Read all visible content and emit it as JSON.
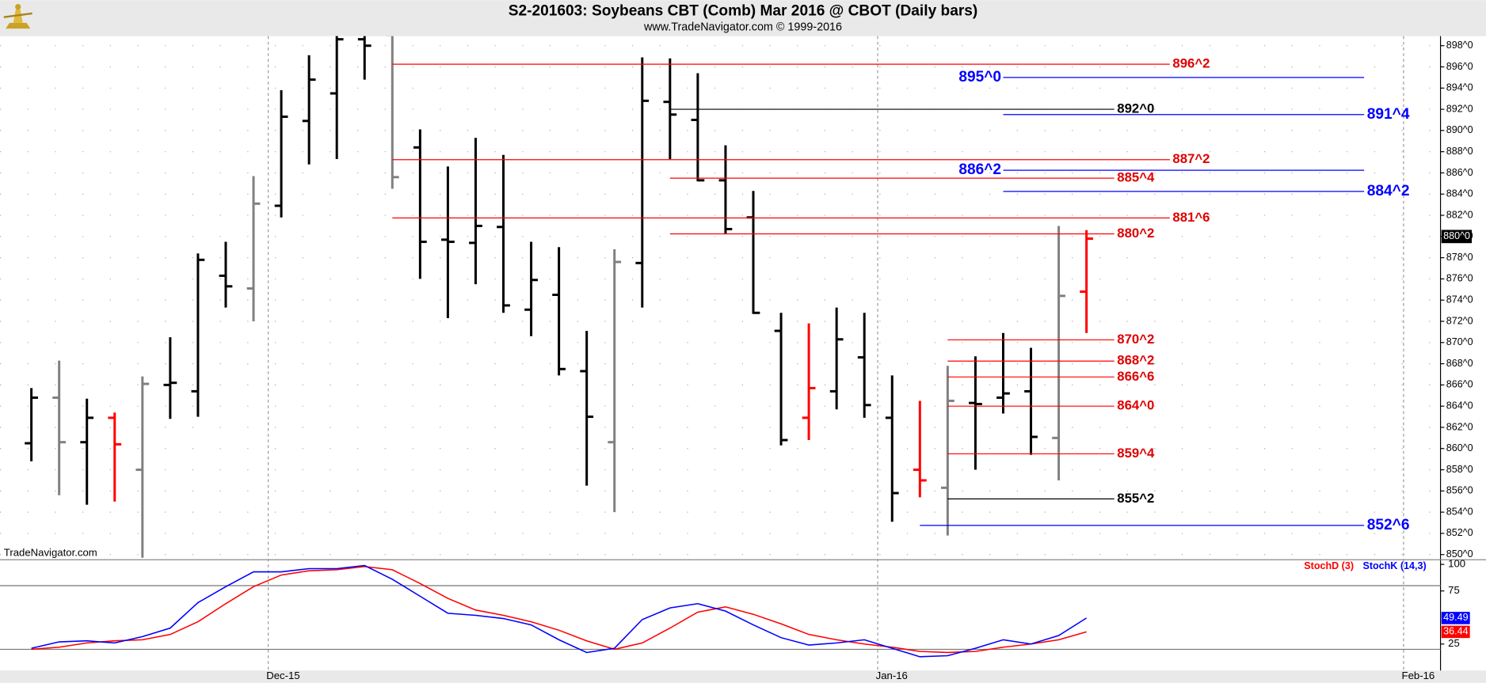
{
  "chart_data": [
    {
      "type": "ohlc",
      "title": "S2-201603:  Soybeans CBT (Comb) Mar 2016 @ CBOT  (Daily bars)",
      "subtitle": "www.TradeNavigator.com © 1999-2016",
      "watermark": "TradeNavigator.com",
      "x": [
        0,
        1,
        2,
        3,
        4,
        5,
        6,
        7,
        8,
        9,
        10,
        11,
        12,
        13,
        14,
        15,
        16,
        17,
        18,
        19,
        20,
        21,
        22,
        23,
        24,
        25,
        26,
        27,
        28,
        29,
        30,
        31,
        32,
        33,
        34,
        35,
        36,
        37,
        38
      ],
      "open": [
        860.5,
        864.8,
        860.6,
        862.9,
        858.0,
        866.0,
        865.4,
        876.3,
        875.1,
        882.9,
        890.9,
        893.5,
        898.6,
        899.0,
        888.4,
        879.7,
        879.4,
        880.9,
        873.1,
        874.5,
        867.3,
        860.6,
        877.5,
        892.7,
        891.0,
        885.3,
        881.8,
        871.1,
        862.9,
        865.4,
        868.6,
        862.9,
        858.0,
        856.3,
        864.3,
        864.8,
        865.4,
        861.0,
        874.8
      ],
      "high": [
        865.7,
        868.3,
        864.7,
        863.4,
        866.8,
        870.5,
        878.4,
        879.5,
        885.7,
        893.8,
        897.1,
        899.2,
        899.5,
        899.3,
        890.1,
        886.6,
        889.3,
        887.7,
        879.5,
        879.0,
        871.1,
        878.8,
        896.9,
        896.8,
        895.4,
        888.6,
        884.3,
        872.8,
        871.8,
        873.3,
        872.8,
        866.9,
        864.5,
        867.8,
        868.7,
        870.9,
        869.5,
        881.0,
        880.6
      ],
      "low": [
        858.8,
        855.6,
        854.7,
        855.0,
        849.7,
        862.8,
        863.0,
        873.3,
        872.0,
        881.8,
        886.8,
        887.3,
        894.8,
        884.5,
        876.0,
        872.3,
        875.5,
        872.8,
        870.6,
        866.9,
        856.5,
        854.0,
        873.3,
        887.3,
        885.2,
        880.2,
        872.7,
        860.3,
        860.8,
        863.7,
        862.9,
        853.1,
        855.4,
        851.8,
        858.0,
        863.3,
        859.4,
        857.0,
        870.9
      ],
      "close": [
        864.8,
        860.6,
        862.9,
        860.4,
        866.1,
        866.2,
        877.8,
        875.3,
        883.1,
        891.3,
        894.8,
        898.6,
        898.0,
        885.6,
        879.5,
        879.5,
        881.0,
        873.5,
        875.9,
        867.5,
        863.0,
        877.6,
        892.8,
        891.5,
        885.3,
        880.7,
        872.8,
        860.8,
        865.7,
        870.3,
        864.1,
        855.8,
        857.0,
        864.5,
        864.2,
        865.2,
        861.1,
        874.4,
        879.8
      ],
      "colors": [
        "#000000",
        "#808080",
        "#000000",
        "#ff0000",
        "#808080",
        "#000000",
        "#000000",
        "#000000",
        "#808080",
        "#000000",
        "#000000",
        "#000000",
        "#000000",
        "#808080",
        "#000000",
        "#000000",
        "#000000",
        "#000000",
        "#000000",
        "#000000",
        "#000000",
        "#808080",
        "#000000",
        "#000000",
        "#000000",
        "#000000",
        "#000000",
        "#000000",
        "#ff0000",
        "#000000",
        "#000000",
        "#000000",
        "#ff0000",
        "#808080",
        "#000000",
        "#000000",
        "#000000",
        "#808080",
        "#ff0000"
      ],
      "xlim": [
        -1.13,
        50.75
      ],
      "ylim": [
        849.6,
        898.9
      ],
      "yticks": [
        {
          "value": 898,
          "label": "898^0"
        },
        {
          "value": 896,
          "label": "896^0"
        },
        {
          "value": 894,
          "label": "894^0"
        },
        {
          "value": 892,
          "label": "892^0"
        },
        {
          "value": 890,
          "label": "890^0"
        },
        {
          "value": 888,
          "label": "888^0"
        },
        {
          "value": 886,
          "label": "886^0"
        },
        {
          "value": 884,
          "label": "884^0"
        },
        {
          "value": 882,
          "label": "882^0"
        },
        {
          "value": 880,
          "label": "880^0"
        },
        {
          "value": 878,
          "label": "878^0"
        },
        {
          "value": 876,
          "label": "876^0"
        },
        {
          "value": 874,
          "label": "874^0"
        },
        {
          "value": 872,
          "label": "872^0"
        },
        {
          "value": 870,
          "label": "870^0"
        },
        {
          "value": 868,
          "label": "868^0"
        },
        {
          "value": 866,
          "label": "866^0"
        },
        {
          "value": 864,
          "label": "864^0"
        },
        {
          "value": 862,
          "label": "862^0"
        },
        {
          "value": 860,
          "label": "860^0"
        },
        {
          "value": 858,
          "label": "858^0"
        },
        {
          "value": 856,
          "label": "856^0"
        },
        {
          "value": 854,
          "label": "854^0"
        },
        {
          "value": 852,
          "label": "852^0"
        },
        {
          "value": 850,
          "label": "850^0"
        }
      ],
      "grid": true,
      "last_price": {
        "value": 880,
        "label": "880^0"
      },
      "levels": [
        {
          "value": 896.25,
          "label": "896^2",
          "color": "#ff0000",
          "x": [
            13,
            41
          ],
          "label_at": "end"
        },
        {
          "value": 895,
          "label": "895^0",
          "color": "#0000ff",
          "x": [
            35,
            48
          ],
          "label_at": "start"
        },
        {
          "value": 892,
          "label": "892^0",
          "color": "#000000",
          "x": [
            23,
            39
          ],
          "label_at": "end"
        },
        {
          "value": 891.5,
          "label": "891^4",
          "color": "#0000ff",
          "x": [
            35,
            48
          ],
          "label_at": "end"
        },
        {
          "value": 887.25,
          "label": "887^2",
          "color": "#ff0000",
          "x": [
            13,
            41
          ],
          "label_at": "end"
        },
        {
          "value": 886.25,
          "label": "886^2",
          "color": "#0000ff",
          "x": [
            35,
            48
          ],
          "label_at": "start"
        },
        {
          "value": 885.5,
          "label": "885^4",
          "color": "#ff0000",
          "x": [
            23,
            39
          ],
          "label_at": "end"
        },
        {
          "value": 884.25,
          "label": "884^2",
          "color": "#0000ff",
          "x": [
            35,
            48
          ],
          "label_at": "end"
        },
        {
          "value": 881.75,
          "label": "881^6",
          "color": "#ff0000",
          "x": [
            13,
            41
          ],
          "label_at": "end"
        },
        {
          "value": 880.25,
          "label": "880^2",
          "color": "#ff0000",
          "x": [
            23,
            39
          ],
          "label_at": "end"
        },
        {
          "value": 870.25,
          "label": "870^2",
          "color": "#ff0000",
          "x": [
            33,
            39
          ],
          "label_at": "end"
        },
        {
          "value": 868.25,
          "label": "868^2",
          "color": "#ff0000",
          "x": [
            33,
            39
          ],
          "label_at": "end"
        },
        {
          "value": 866.75,
          "label": "866^6",
          "color": "#ff0000",
          "x": [
            33,
            39
          ],
          "label_at": "end"
        },
        {
          "value": 864,
          "label": "864^0",
          "color": "#ff0000",
          "x": [
            33,
            39
          ],
          "label_at": "end"
        },
        {
          "value": 859.5,
          "label": "859^4",
          "color": "#ff0000",
          "x": [
            33,
            39
          ],
          "label_at": "end"
        },
        {
          "value": 855.25,
          "label": "855^2",
          "color": "#000000",
          "x": [
            33,
            39
          ],
          "label_at": "end"
        },
        {
          "value": 852.75,
          "label": "852^6",
          "color": "#0000ff",
          "x": [
            32,
            48
          ],
          "label_at": "end"
        }
      ]
    },
    {
      "type": "line",
      "series": [
        {
          "name": "StochD (3)",
          "color": "#ff0000",
          "values": [
            20,
            22,
            26,
            28,
            29,
            34,
            46,
            63,
            79,
            90,
            94,
            95,
            98,
            95,
            82,
            68,
            57,
            52,
            46,
            38,
            28,
            20,
            26,
            40,
            55,
            60,
            53,
            44,
            34,
            29,
            25,
            22,
            18,
            17,
            18,
            22,
            25,
            29,
            36.44
          ]
        },
        {
          "name": "StochK (14,3)",
          "color": "#0000ff",
          "values": [
            21,
            27,
            28,
            26,
            32,
            40,
            64,
            79,
            93,
            93,
            96,
            96,
            99,
            86,
            70,
            54,
            52,
            49,
            43,
            29,
            17,
            21,
            48,
            59,
            63,
            56,
            43,
            31,
            24,
            26,
            29,
            21,
            13,
            14,
            21,
            29,
            25,
            33,
            49.49
          ]
        }
      ],
      "xlim": [
        -1.13,
        50.75
      ],
      "xticks": [
        {
          "value": 8.53,
          "label": "Dec-15"
        },
        {
          "value": 30.48,
          "label": "Jan-16"
        },
        {
          "value": 49.42,
          "label": "Feb-16"
        }
      ],
      "ylim": [
        0,
        103.5
      ],
      "yticks": [
        100,
        75,
        25
      ],
      "levels": [
        80,
        20
      ]
    }
  ]
}
